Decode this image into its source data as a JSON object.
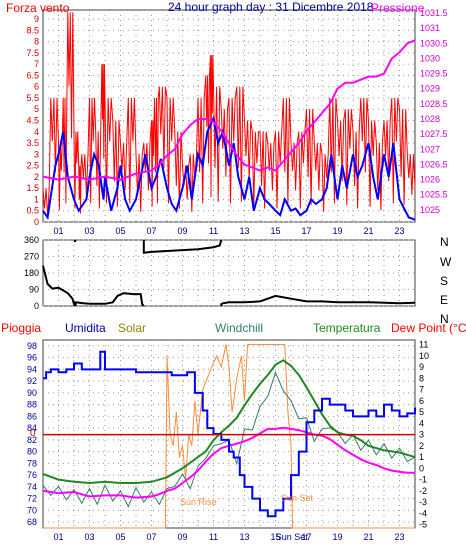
{
  "header": {
    "left_label": "Forza vento",
    "title": "24 hour graph day : 31 Dicembre 2018",
    "right_label": "Pressione"
  },
  "panel3_labels": {
    "pioggia": "Pioggia",
    "umidita": "Umidita",
    "solar": "Solar",
    "windchill": "Windchill",
    "temperatura": "Temperatura",
    "dewpoint": "Dew Point (°C)",
    "sun_rise": "Sun Rise",
    "sun_set": "Sun Set",
    "zero": "0"
  },
  "colors": {
    "wind": "#ff0000",
    "wind_avg": "#0000ff",
    "pressure": "#ff00ff",
    "direction": "#000000",
    "rain": "#cc0000",
    "humidity": "#0000ff",
    "solar": "#ff8c3c",
    "windchill": "#2f7f6a",
    "temperature": "#1f8a1f",
    "dewpoint": "#ff00ff",
    "label_red": "#ff0000",
    "label_blue": "#0000a0",
    "label_olive": "#8a8a00",
    "label_teal": "#2f7f6a",
    "label_green": "#1f8a1f"
  },
  "chart_data": [
    {
      "type": "line",
      "name": "wind-pressure",
      "x_ticks": [
        "01",
        "03",
        "05",
        "07",
        "09",
        "11",
        "13",
        "15",
        "17",
        "19",
        "21",
        "23"
      ],
      "y_left_ticks": [
        "0",
        "0.5",
        "1",
        "1.5",
        "2",
        "2.5",
        "3",
        "3.5",
        "4",
        "4.5",
        "5",
        "5.5",
        "6",
        "6.5",
        "7",
        "7.5",
        "8",
        "8.5",
        "9"
      ],
      "y_right_ticks": [
        "1025",
        "1025.5",
        "1026",
        "1026.5",
        "1027",
        "1027.5",
        "1028",
        "1028.5",
        "1029",
        "1029.5",
        "1030",
        "1030.5",
        "1031",
        "1031.5"
      ],
      "ylim_left": [
        0,
        9.4
      ],
      "ylim_right": [
        1024.6,
        1031.6
      ],
      "xlim": [
        0,
        24
      ],
      "wind_gust": {
        "x": [
          0,
          0.5,
          1,
          1.3,
          1.6,
          2,
          2.3,
          2.5,
          3,
          3.4,
          3.8,
          4,
          4.5,
          5,
          5.5,
          6,
          6.5,
          7,
          7.2,
          7.5,
          8,
          8.5,
          9,
          9.5,
          10,
          10.5,
          10.8,
          11,
          11.5,
          12,
          12.5,
          13,
          13.5,
          14,
          14.5,
          15,
          15.5,
          16,
          16.5,
          17,
          17.5,
          18,
          18.5,
          19,
          19.5,
          20,
          20.5,
          21,
          21.5,
          22,
          22.5,
          23,
          23.5,
          24
        ],
        "y": [
          1.5,
          5.5,
          3.5,
          5.5,
          9.3,
          4,
          2.5,
          3,
          5.5,
          4,
          7,
          5.5,
          4.5,
          3.5,
          5.5,
          3,
          3.5,
          4.5,
          5.5,
          6,
          5.5,
          4,
          2.5,
          3,
          5.5,
          6.5,
          7.4,
          6,
          5,
          5.5,
          6,
          4.5,
          4,
          4,
          3.5,
          4,
          5.5,
          3.5,
          4,
          5,
          3.5,
          3,
          5.5,
          4.5,
          5,
          4,
          5.5,
          4.5,
          3.5,
          4.5,
          5.5,
          5,
          3,
          1.5
        ]
      },
      "wind_avg": {
        "x": [
          0,
          0.3,
          0.8,
          1,
          1.3,
          1.6,
          2,
          2.3,
          2.8,
          3,
          3.3,
          3.6,
          3.9,
          4,
          4.4,
          4.8,
          5,
          5.3,
          5.6,
          6,
          6.3,
          6.6,
          7,
          7.3,
          7.6,
          8,
          8.3,
          8.6,
          9,
          9.3,
          9.6,
          10,
          10.3,
          10.6,
          11,
          11.3,
          11.6,
          12,
          12.3,
          12.6,
          13,
          13.3,
          13.6,
          14,
          14.3,
          14.6,
          15,
          15.3,
          15.6,
          16,
          16.3,
          16.6,
          17,
          17.3,
          17.6,
          18,
          18.3,
          18.6,
          19,
          19.3,
          19.6,
          20,
          20.3,
          20.6,
          21,
          21.3,
          21.6,
          22,
          22.3,
          22.6,
          23,
          23.3,
          23.6,
          24
        ],
        "y": [
          0.5,
          0.2,
          2.5,
          3,
          4,
          2,
          1,
          0.5,
          1,
          2,
          3,
          2.5,
          1,
          2,
          0.5,
          1.5,
          2.5,
          1,
          0.5,
          1,
          2,
          3,
          1.5,
          2,
          2.8,
          1.5,
          0.8,
          0.5,
          1.5,
          2.5,
          1,
          3,
          2.5,
          4,
          4.6,
          3.5,
          4,
          2.5,
          3.5,
          2,
          1,
          2,
          0.5,
          1.5,
          1,
          0.8,
          0.5,
          0.3,
          1,
          0.5,
          0.6,
          0.3,
          0.5,
          1,
          0.8,
          1,
          1.5,
          3,
          1,
          2.5,
          1.5,
          3,
          2,
          2.5,
          3.5,
          2,
          1,
          3,
          2,
          3.5,
          1,
          0.6,
          0.2,
          0.1
        ]
      },
      "pressure": {
        "x": [
          0,
          1,
          2,
          3,
          4,
          5,
          6,
          7,
          7.5,
          8,
          8.5,
          9,
          9.5,
          10,
          10.5,
          11,
          11.5,
          12,
          12.5,
          13,
          13.5,
          14,
          14.5,
          15,
          15.5,
          16,
          16.5,
          17,
          17.5,
          18,
          18.5,
          19,
          19.5,
          20,
          20.5,
          21,
          21.5,
          22,
          22.5,
          23,
          23.5,
          24
        ],
        "y": [
          1026.1,
          1026.0,
          1026.1,
          1026.0,
          1026.1,
          1026.0,
          1026.2,
          1026.3,
          1026.5,
          1026.8,
          1027.0,
          1027.5,
          1027.8,
          1028.0,
          1028.0,
          1027.9,
          1027.6,
          1027.2,
          1026.8,
          1026.5,
          1026.4,
          1026.3,
          1026.4,
          1026.3,
          1026.6,
          1026.9,
          1027.2,
          1027.6,
          1027.9,
          1028.2,
          1028.5,
          1029.0,
          1029.2,
          1029.2,
          1029.3,
          1029.4,
          1029.4,
          1029.5,
          1030.0,
          1030.2,
          1030.5,
          1030.6
        ]
      }
    },
    {
      "type": "line",
      "name": "wind-direction",
      "y_ticks": [
        "0",
        "90",
        "180",
        "270",
        "360"
      ],
      "compass": [
        "N",
        "W",
        "S",
        "E",
        "N"
      ],
      "ylim": [
        0,
        360
      ],
      "direction": {
        "x": [
          0,
          0.3,
          0.6,
          1,
          1.4,
          1.6,
          1.9,
          2.0,
          2.05,
          2.1,
          2.6,
          3,
          4,
          4.5,
          4.8,
          5.2,
          5.8,
          6.3,
          6.4,
          6.5,
          7,
          8,
          9,
          10,
          11,
          11.4,
          11.5,
          11.6,
          12,
          13,
          14,
          15,
          16,
          17,
          18,
          19,
          20,
          21,
          22,
          23,
          24
        ],
        "y": [
          220,
          120,
          95,
          100,
          80,
          70,
          40,
          10,
          350,
          20,
          15,
          12,
          12,
          20,
          55,
          70,
          65,
          65,
          10,
          290,
          295,
          300,
          305,
          310,
          320,
          330,
          10,
          15,
          20,
          20,
          25,
          55,
          40,
          25,
          25,
          20,
          20,
          20,
          18,
          15,
          18
        ]
      }
    },
    {
      "type": "line",
      "name": "environment",
      "y_left_ticks": [
        "68",
        "70",
        "72",
        "74",
        "76",
        "78",
        "80",
        "82",
        "84",
        "86",
        "88",
        "90",
        "92",
        "94",
        "96",
        "98"
      ],
      "y_right_ticks": [
        "-5",
        "-4",
        "-3",
        "-2",
        "-1",
        "0",
        "1",
        "2",
        "3",
        "4",
        "5",
        "6",
        "7",
        "8",
        "9",
        "10",
        "11"
      ],
      "ylim_left": [
        67,
        99
      ],
      "ylim_right": [
        -5.3,
        11.4
      ],
      "x_ticks": [
        "01",
        "03",
        "05",
        "07",
        "09",
        "11",
        "13",
        "15",
        "Sun Set",
        "17",
        "19",
        "21",
        "23"
      ],
      "humidity": {
        "x": [
          0,
          0.2,
          0.5,
          1,
          1.5,
          2,
          2.5,
          3,
          3.5,
          3.7,
          4,
          5,
          6,
          7,
          8,
          8.3,
          9,
          9.3,
          9.8,
          10.3,
          10.6,
          11,
          11.5,
          12,
          12.3,
          12.7,
          13,
          13.5,
          14,
          14.5,
          15,
          15.5,
          16,
          16.5,
          17,
          17.5,
          18,
          18.5,
          19,
          19.5,
          20,
          20.5,
          21,
          21.5,
          22,
          22.5,
          23,
          23.5,
          24
        ],
        "y": [
          92.5,
          93.5,
          94,
          93.5,
          94,
          95,
          94,
          94,
          94,
          97,
          94,
          94,
          93.5,
          93.5,
          93.5,
          93,
          93,
          93.5,
          90,
          87,
          84,
          83,
          82,
          80,
          79,
          76,
          74,
          72,
          70,
          69,
          70,
          72,
          76,
          80,
          85,
          87,
          89,
          88,
          88,
          87,
          86,
          86,
          87,
          86,
          88,
          87,
          86,
          86.5,
          87.5
        ]
      },
      "solar": {
        "x": [
          0,
          7.8,
          7.9,
          8.0,
          8.2,
          8.4,
          8.6,
          8.8,
          9,
          9.2,
          9.4,
          9.6,
          9.8,
          10,
          10.3,
          10.6,
          10.9,
          11.2,
          11.5,
          11.8,
          12,
          12.2,
          12.5,
          12.8,
          13,
          13.2,
          13.5,
          13.8,
          14,
          14.5,
          15,
          15.3,
          15.6,
          15.8,
          16,
          16.1,
          16.3,
          16.6,
          17,
          24
        ],
        "y": [
          -5.3,
          -5.3,
          -5.3,
          10,
          3,
          2,
          5,
          1,
          2,
          -1,
          3,
          2,
          6,
          3,
          7,
          8,
          9,
          10,
          9,
          11,
          9,
          5,
          8,
          10,
          6,
          11,
          11,
          11,
          11,
          11,
          11,
          11,
          11,
          5,
          2,
          -5.3,
          -5.3,
          -5.3,
          -5.3,
          -5.3
        ]
      },
      "windchill": {
        "x": [
          0,
          0.5,
          1,
          1.5,
          2,
          2.5,
          3,
          3.5,
          4,
          4.5,
          5,
          5.5,
          6,
          6.5,
          7,
          7.5,
          8,
          8.5,
          9,
          9.5,
          10,
          10.5,
          11,
          11.5,
          12,
          12.5,
          13,
          13.5,
          14,
          14.5,
          15,
          15.5,
          16,
          16.5,
          17,
          17.5,
          18,
          18.5,
          19,
          19.5,
          20,
          20.5,
          21,
          21.5,
          22,
          22.5,
          23,
          23.5,
          24
        ],
        "y": [
          -1.5,
          -1.8,
          -1.6,
          -2.2,
          -1.9,
          -2.5,
          -1.8,
          -2.6,
          -1.5,
          -2.3,
          -2.0,
          -2.8,
          -1.7,
          -2.4,
          -2.1,
          -2.6,
          -1.8,
          -1.0,
          -0.5,
          -1.2,
          0.2,
          1.5,
          2.0,
          2.8,
          2.5,
          1.0,
          3.5,
          4.0,
          5.5,
          7.0,
          8.5,
          7.5,
          6.0,
          5.0,
          4.5,
          3.0,
          3.5,
          4.2,
          3.2,
          2.8,
          3.0,
          2.2,
          2.5,
          1.8,
          2.2,
          1.5,
          1.8,
          1.2,
          1.0
        ]
      },
      "temperature": {
        "x": [
          0,
          1,
          2,
          3,
          4,
          5,
          6,
          7,
          7.5,
          8,
          8.5,
          9,
          9.5,
          10,
          10.5,
          11,
          11.5,
          12,
          12.5,
          13,
          13.5,
          14,
          14.5,
          15,
          15.5,
          16,
          16.5,
          17,
          17.5,
          18,
          18.5,
          19,
          19.5,
          20,
          20.5,
          21,
          21.5,
          22,
          22.5,
          23,
          23.5,
          24
        ],
        "y": [
          -0.5,
          -1.0,
          -1.2,
          -1.3,
          -1.2,
          -1.3,
          -1.3,
          -1.2,
          -1.0,
          -0.8,
          -0.4,
          0,
          0.5,
          1.0,
          1.5,
          2.5,
          3.2,
          3.8,
          4.5,
          5.6,
          6.6,
          7.5,
          8.3,
          9.2,
          9.6,
          9.1,
          8.3,
          7.2,
          6.0,
          4.8,
          3.8,
          3.2,
          3.0,
          2.9,
          2.5,
          2.0,
          1.8,
          1.6,
          1.5,
          1.4,
          1.2,
          1.0
        ]
      },
      "dewpoint": {
        "x": [
          0,
          1,
          2,
          3,
          4,
          5,
          6,
          7,
          7.5,
          8,
          8.5,
          9,
          9.5,
          10,
          10.5,
          11,
          11.5,
          12,
          12.5,
          13,
          13.5,
          14,
          14.5,
          15,
          15.5,
          16,
          16.5,
          17,
          17.5,
          18,
          18.5,
          19,
          19.5,
          20,
          20.5,
          21,
          21.5,
          22,
          22.5,
          23,
          23.5,
          24
        ],
        "y": [
          -2.0,
          -2.2,
          -2.1,
          -2.5,
          -2.4,
          -2.4,
          -2.6,
          -2.5,
          -2.3,
          -2.0,
          -1.8,
          -1.3,
          -0.8,
          -0.2,
          0.6,
          1.3,
          1.8,
          2.0,
          2.2,
          2.4,
          2.7,
          3.1,
          3.5,
          3.5,
          3.6,
          3.5,
          3.4,
          3.2,
          3.0,
          2.9,
          2.6,
          2.1,
          1.6,
          1.2,
          0.8,
          0.5,
          0.3,
          0,
          -0.2,
          -0.3,
          -0.4,
          -0.4
        ]
      },
      "rain": {
        "x": [
          0,
          24
        ],
        "y": [
          0,
          0
        ]
      }
    }
  ]
}
